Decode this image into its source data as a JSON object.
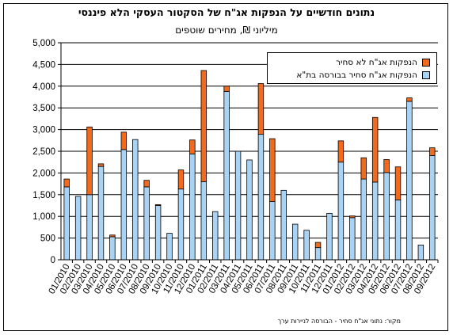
{
  "title": "נתונים חודשיים על הנפקות אג\"ח של הסקטור העסקי הלא פיננסי",
  "subtitle": "מיליוני ₪, מחירים שוטפים",
  "source": "מקור: נתוני אג\"ח סחיר - הבורסה לניירות ערך",
  "colors": {
    "listed": "#a9d3f5",
    "unlisted": "#f26a1b",
    "border": "#000000"
  },
  "chart_data": {
    "type": "bar",
    "stacked": true,
    "ylim": [
      0,
      5000
    ],
    "yticks": [
      "0",
      "500",
      "1,000",
      "1,500",
      "2,000",
      "2,500",
      "3,000",
      "3,500",
      "4,000",
      "4,500",
      "5,000"
    ],
    "ytick_values": [
      0,
      500,
      1000,
      1500,
      2000,
      2500,
      3000,
      3500,
      4000,
      4500,
      5000
    ],
    "grid": true,
    "legend": "top-right",
    "categories": [
      "01/2010",
      "02/2010",
      "03/2010",
      "04/2010",
      "05/2010",
      "06/2010",
      "07/2010",
      "08/2010",
      "09/2010",
      "10/2010",
      "11/2010",
      "12/2010",
      "01/2011",
      "02/2011",
      "03/2011",
      "04/2011",
      "05/2011",
      "06/2011",
      "07/2011",
      "08/2011",
      "09/2011",
      "10/2011",
      "11/2011",
      "12/2011",
      "01/2012",
      "02/2012",
      "03/2012",
      "04/2012",
      "05/2012",
      "06/2012",
      "07/2012",
      "08/2012",
      "09/2012"
    ],
    "xtick_labels": [
      "01/2010",
      "02/2010",
      "03/2010",
      "04/2010",
      "05/2010",
      "06/2010",
      "07/2010",
      "08/2010",
      "09/2010",
      "10/2010",
      "11/2010",
      "12/2010",
      "01/2011",
      "02/2011",
      "03/2011",
      "04/2011",
      "05/2011",
      "06/2011",
      "07/2011",
      "08/2011",
      "09/2011",
      "10/2011",
      "11/2011",
      "12/2011",
      "01/2012",
      "02/2012",
      "03/2012",
      "04/2012",
      "05/2012",
      "06/2012",
      "07/2012",
      "08/2012",
      "09/2012"
    ],
    "series": [
      {
        "name": "הנפקות אג\"ח סחיר בבורסה בת\"א",
        "color": "#a9d3f5",
        "values": [
          1680,
          1460,
          1500,
          2150,
          530,
          2540,
          2770,
          1680,
          1250,
          610,
          1630,
          2440,
          1800,
          1110,
          3880,
          2500,
          2300,
          2890,
          1340,
          1600,
          820,
          680,
          280,
          1070,
          2250,
          970,
          1860,
          1790,
          2010,
          1380,
          3650,
          340,
          2400
        ]
      },
      {
        "name": "הנפקות אג\"ח לא סחיר",
        "color": "#f26a1b",
        "values": [
          180,
          0,
          1560,
          60,
          40,
          400,
          0,
          150,
          20,
          0,
          440,
          320,
          2560,
          0,
          120,
          0,
          0,
          1170,
          1450,
          0,
          0,
          0,
          120,
          0,
          490,
          40,
          490,
          1490,
          300,
          760,
          80,
          0,
          180
        ]
      }
    ]
  }
}
